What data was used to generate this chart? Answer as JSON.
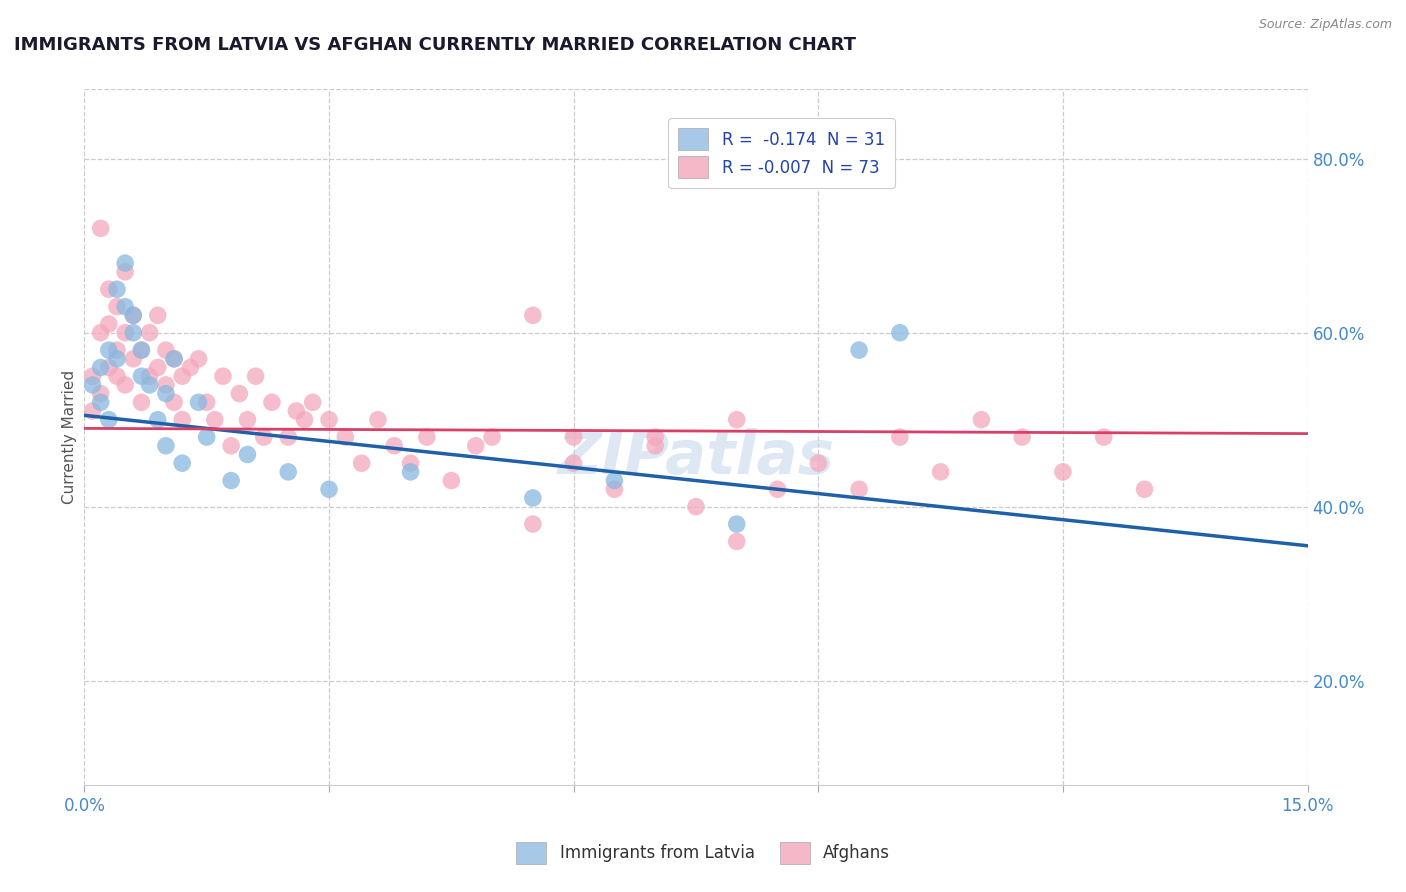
{
  "title": "IMMIGRANTS FROM LATVIA VS AFGHAN CURRENTLY MARRIED CORRELATION CHART",
  "source": "Source: ZipAtlas.com",
  "xlabel_label": "Immigrants from Latvia",
  "ylabel_label": "Currently Married",
  "x_min": 0.0,
  "x_max": 0.15,
  "y_min": 0.08,
  "y_max": 0.88,
  "y_tick_labels_right": [
    "20.0%",
    "40.0%",
    "60.0%",
    "80.0%"
  ],
  "y_tick_vals_right": [
    0.2,
    0.4,
    0.6,
    0.8
  ],
  "latvia_R": -0.174,
  "latvia_N": 31,
  "afghan_R": -0.007,
  "afghan_N": 73,
  "legend_blue_label": "R =  -0.174  N = 31",
  "legend_pink_label": "R = -0.007  N = 73",
  "legend_blue_color": "#a8c8e8",
  "legend_pink_color": "#f4b8c8",
  "dot_blue_color": "#88b8e0",
  "dot_pink_color": "#f4a8bc",
  "line_blue_color": "#2060a8",
  "line_pink_color": "#d84068",
  "watermark": "ZIPatlas",
  "watermark_color": "#c8d8ee",
  "grid_color": "#cccccc",
  "axis_color": "#4488cc",
  "title_color": "#1a1a2e",
  "lv_line_x0": 0.0,
  "lv_line_y0": 0.505,
  "lv_line_x1": 0.15,
  "lv_line_y1": 0.355,
  "af_line_x0": 0.0,
  "af_line_y0": 0.49,
  "af_line_x1": 0.15,
  "af_line_y1": 0.484,
  "latvia_x": [
    0.001,
    0.002,
    0.002,
    0.003,
    0.003,
    0.004,
    0.004,
    0.005,
    0.005,
    0.006,
    0.006,
    0.007,
    0.007,
    0.008,
    0.009,
    0.01,
    0.01,
    0.011,
    0.012,
    0.014,
    0.015,
    0.018,
    0.02,
    0.025,
    0.03,
    0.04,
    0.055,
    0.065,
    0.08,
    0.095,
    0.1
  ],
  "latvia_y": [
    0.54,
    0.52,
    0.56,
    0.58,
    0.5,
    0.57,
    0.65,
    0.63,
    0.68,
    0.6,
    0.62,
    0.55,
    0.58,
    0.54,
    0.5,
    0.53,
    0.47,
    0.57,
    0.45,
    0.52,
    0.48,
    0.43,
    0.46,
    0.44,
    0.42,
    0.44,
    0.41,
    0.43,
    0.38,
    0.58,
    0.6
  ],
  "afghan_x": [
    0.001,
    0.001,
    0.002,
    0.002,
    0.002,
    0.003,
    0.003,
    0.003,
    0.004,
    0.004,
    0.004,
    0.005,
    0.005,
    0.005,
    0.006,
    0.006,
    0.007,
    0.007,
    0.008,
    0.008,
    0.009,
    0.009,
    0.01,
    0.01,
    0.011,
    0.011,
    0.012,
    0.012,
    0.013,
    0.014,
    0.015,
    0.016,
    0.017,
    0.018,
    0.019,
    0.02,
    0.021,
    0.022,
    0.023,
    0.025,
    0.026,
    0.027,
    0.028,
    0.03,
    0.032,
    0.034,
    0.036,
    0.038,
    0.04,
    0.042,
    0.045,
    0.048,
    0.05,
    0.055,
    0.06,
    0.065,
    0.07,
    0.075,
    0.08,
    0.085,
    0.09,
    0.095,
    0.1,
    0.105,
    0.11,
    0.115,
    0.12,
    0.125,
    0.13,
    0.055,
    0.06,
    0.07,
    0.08
  ],
  "afghan_y": [
    0.51,
    0.55,
    0.6,
    0.53,
    0.72,
    0.56,
    0.61,
    0.65,
    0.55,
    0.58,
    0.63,
    0.54,
    0.6,
    0.67,
    0.57,
    0.62,
    0.52,
    0.58,
    0.55,
    0.6,
    0.56,
    0.62,
    0.54,
    0.58,
    0.52,
    0.57,
    0.5,
    0.55,
    0.56,
    0.57,
    0.52,
    0.5,
    0.55,
    0.47,
    0.53,
    0.5,
    0.55,
    0.48,
    0.52,
    0.48,
    0.51,
    0.5,
    0.52,
    0.5,
    0.48,
    0.45,
    0.5,
    0.47,
    0.45,
    0.48,
    0.43,
    0.47,
    0.48,
    0.38,
    0.45,
    0.42,
    0.47,
    0.4,
    0.36,
    0.42,
    0.45,
    0.42,
    0.48,
    0.44,
    0.5,
    0.48,
    0.44,
    0.48,
    0.42,
    0.62,
    0.48,
    0.48,
    0.5
  ]
}
